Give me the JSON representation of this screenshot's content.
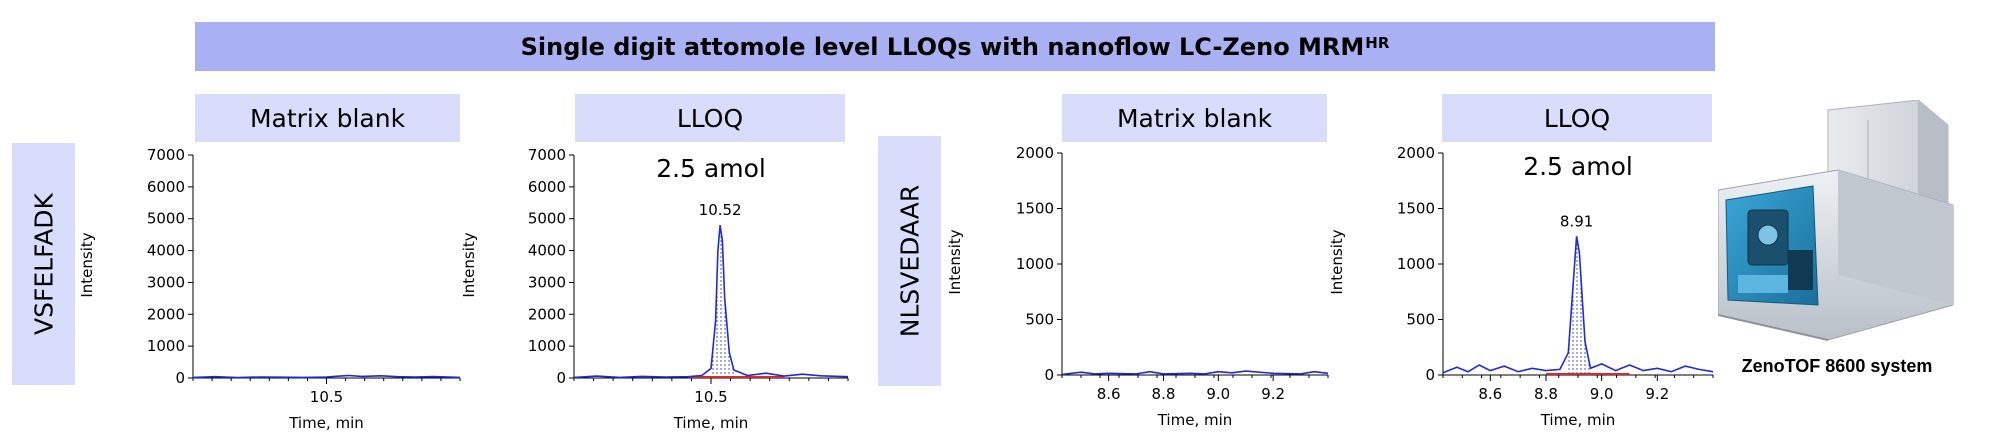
{
  "banner": {
    "title": "Single digit attomole level LLOQs with nanoflow LC-Zeno MRM",
    "superscript": "HR"
  },
  "rows": [
    {
      "label": "VSFELFADK"
    },
    {
      "label": "NLSVEDAAR"
    }
  ],
  "instrument": {
    "caption": "ZenoTOF 8600 system",
    "icon": "mass-spectrometer-image"
  },
  "colors": {
    "trace": "#1f2bd6",
    "baseline": "#d62a2a",
    "banner": "#aab1f3",
    "panel_title": "#d9dcfa"
  },
  "chart_data": [
    {
      "type": "line",
      "title": "Matrix blank",
      "annotation": "",
      "xlabel": "Time, min",
      "ylabel": "Intensity",
      "xlim": [
        10.2,
        10.8
      ],
      "ylim": [
        0,
        7000
      ],
      "xticks": [
        10.5
      ],
      "yticks": [
        0,
        1000,
        2000,
        3000,
        4000,
        5000,
        6000,
        7000
      ],
      "peak": null,
      "series": [
        {
          "x": [
            10.2,
            10.25,
            10.3,
            10.35,
            10.4,
            10.45,
            10.5,
            10.53,
            10.55,
            10.58,
            10.62,
            10.66,
            10.7,
            10.74,
            10.8
          ],
          "y": [
            20,
            40,
            15,
            30,
            25,
            20,
            30,
            60,
            80,
            50,
            70,
            40,
            30,
            45,
            20
          ]
        }
      ]
    },
    {
      "type": "line",
      "title": "LLOQ",
      "annotation": "2.5 amol",
      "xlabel": "Time, min",
      "ylabel": "Intensity",
      "xlim": [
        10.2,
        10.8
      ],
      "ylim": [
        0,
        7000
      ],
      "xticks": [
        10.5
      ],
      "yticks": [
        0,
        1000,
        2000,
        3000,
        4000,
        5000,
        6000,
        7000
      ],
      "peak": {
        "label": "10.52",
        "x": 10.52
      },
      "series": [
        {
          "x": [
            10.2,
            10.25,
            10.3,
            10.35,
            10.4,
            10.45,
            10.48,
            10.5,
            10.51,
            10.515,
            10.52,
            10.525,
            10.53,
            10.54,
            10.55,
            10.58,
            10.62,
            10.66,
            10.7,
            10.74,
            10.8
          ],
          "y": [
            20,
            60,
            20,
            50,
            30,
            40,
            80,
            300,
            1800,
            4000,
            4800,
            4300,
            2500,
            800,
            250,
            80,
            150,
            60,
            120,
            70,
            40
          ]
        }
      ]
    },
    {
      "type": "line",
      "title": "Matrix blank",
      "annotation": "",
      "xlabel": "Time, min",
      "ylabel": "Intensity",
      "xlim": [
        8.43,
        9.4
      ],
      "ylim": [
        0,
        2000
      ],
      "xticks": [
        8.6,
        8.8,
        9.0,
        9.2
      ],
      "yticks": [
        0,
        500,
        1000,
        1500,
        2000
      ],
      "peak": null,
      "series": [
        {
          "x": [
            8.43,
            8.5,
            8.55,
            8.6,
            8.7,
            8.75,
            8.8,
            8.9,
            8.95,
            9.0,
            9.05,
            9.1,
            9.2,
            9.3,
            9.35,
            9.4
          ],
          "y": [
            5,
            25,
            10,
            15,
            10,
            30,
            10,
            15,
            10,
            30,
            20,
            35,
            15,
            10,
            30,
            15
          ]
        }
      ]
    },
    {
      "type": "line",
      "title": "LLOQ",
      "annotation": "2.5 amol",
      "xlabel": "Time, min",
      "ylabel": "Intensity",
      "xlim": [
        8.43,
        9.4
      ],
      "ylim": [
        0,
        2000
      ],
      "xticks": [
        8.6,
        8.8,
        9.0,
        9.2
      ],
      "yticks": [
        0,
        500,
        1000,
        1500,
        2000
      ],
      "peak": {
        "label": "8.91",
        "x": 8.91
      },
      "series": [
        {
          "x": [
            8.43,
            8.48,
            8.52,
            8.56,
            8.6,
            8.65,
            8.7,
            8.75,
            8.8,
            8.85,
            8.88,
            8.9,
            8.91,
            8.92,
            8.94,
            8.96,
            9.0,
            9.05,
            9.1,
            9.15,
            9.2,
            9.25,
            9.3,
            9.35,
            9.4
          ],
          "y": [
            20,
            70,
            30,
            90,
            40,
            80,
            30,
            60,
            40,
            50,
            200,
            900,
            1250,
            1100,
            300,
            60,
            100,
            40,
            90,
            40,
            60,
            30,
            80,
            50,
            30
          ]
        }
      ]
    }
  ]
}
